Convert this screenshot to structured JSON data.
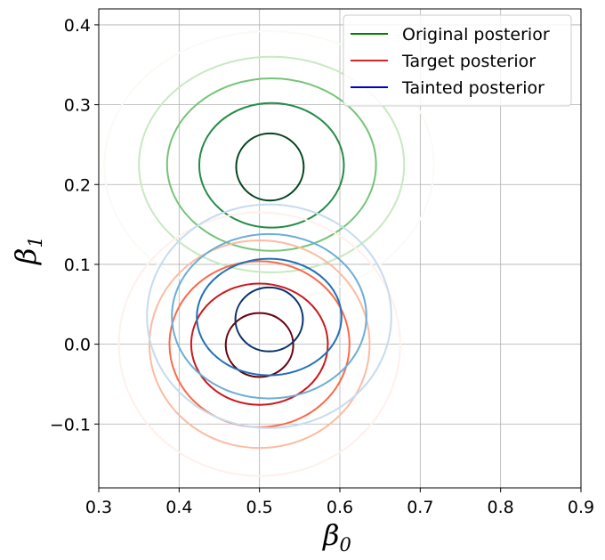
{
  "chart_data": {
    "type": "contour",
    "title": "",
    "xlabel": "β",
    "xlabel_subscript": "0",
    "ylabel": "β",
    "ylabel_subscript": "1",
    "xlim": [
      0.3,
      0.9
    ],
    "ylim": [
      -0.18,
      0.42
    ],
    "x_ticks": [
      0.3,
      0.4,
      0.5,
      0.6,
      0.7,
      0.8,
      0.9
    ],
    "x_tick_labels": [
      "0.3",
      "0.4",
      "0.5",
      "0.6",
      "0.7",
      "0.8",
      "0.9"
    ],
    "y_ticks": [
      -0.1,
      0.0,
      0.1,
      0.2,
      0.3,
      0.4
    ],
    "y_tick_labels": [
      "−0.1",
      "0.0",
      "0.1",
      "0.2",
      "0.3",
      "0.4"
    ],
    "grid": true,
    "legend_position": "top-right",
    "series": [
      {
        "name": "Original posterior",
        "legend_color": "#008000",
        "contours": [
          {
            "cx": 0.513,
            "cy": 0.222,
            "rx": 0.042,
            "ry": 0.042,
            "color": "#00441b"
          },
          {
            "cx": 0.515,
            "cy": 0.224,
            "rx": 0.09,
            "ry": 0.078,
            "color": "#238b45"
          },
          {
            "cx": 0.515,
            "cy": 0.225,
            "rx": 0.13,
            "ry": 0.108,
            "color": "#74c476"
          },
          {
            "cx": 0.515,
            "cy": 0.225,
            "rx": 0.165,
            "ry": 0.135,
            "color": "#c7e9c0"
          },
          {
            "cx": 0.512,
            "cy": 0.224,
            "rx": 0.205,
            "ry": 0.168,
            "color": "#f7fcf5"
          }
        ]
      },
      {
        "name": "Target posterior",
        "legend_color": "#d62728",
        "contours": [
          {
            "cx": 0.5,
            "cy": -0.001,
            "rx": 0.042,
            "ry": 0.04,
            "color": "#67000d"
          },
          {
            "cx": 0.5,
            "cy": 0.0,
            "rx": 0.085,
            "ry": 0.076,
            "color": "#cb181d"
          },
          {
            "cx": 0.5,
            "cy": 0.0,
            "rx": 0.112,
            "ry": 0.104,
            "color": "#fb6a4a"
          },
          {
            "cx": 0.5,
            "cy": 0.0,
            "rx": 0.137,
            "ry": 0.13,
            "color": "#fcbba1"
          },
          {
            "cx": 0.5,
            "cy": 0.0,
            "rx": 0.175,
            "ry": 0.165,
            "color": "#fff0eb"
          }
        ]
      },
      {
        "name": "Tainted posterior",
        "legend_color": "#0000cd",
        "contours": [
          {
            "cx": 0.512,
            "cy": 0.031,
            "rx": 0.042,
            "ry": 0.04,
            "color": "#08306b"
          },
          {
            "cx": 0.512,
            "cy": 0.034,
            "rx": 0.09,
            "ry": 0.073,
            "color": "#2171b5"
          },
          {
            "cx": 0.512,
            "cy": 0.035,
            "rx": 0.121,
            "ry": 0.103,
            "color": "#6baed6"
          },
          {
            "cx": 0.512,
            "cy": 0.035,
            "rx": 0.152,
            "ry": 0.14,
            "color": "#c6dbef"
          }
        ]
      }
    ]
  }
}
